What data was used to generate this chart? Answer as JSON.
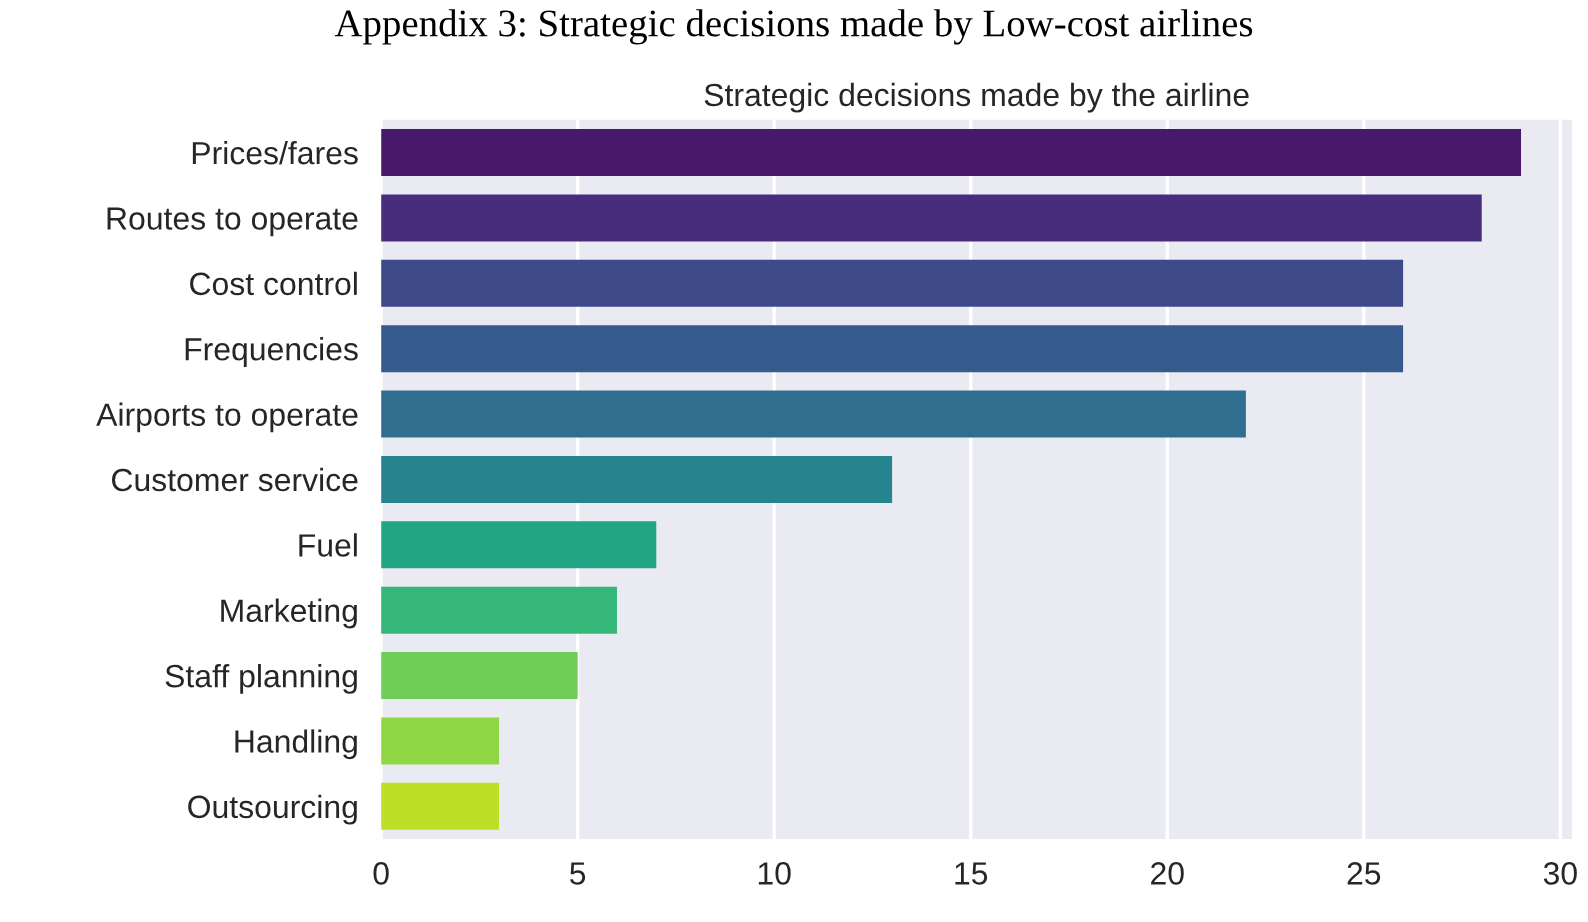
{
  "chart_data": {
    "type": "bar",
    "orientation": "horizontal",
    "title": "Appendix 3: Strategic decisions made by Low-cost airlines",
    "subtitle": "Strategic decisions made by the airline",
    "categories": [
      "Prices/fares",
      "Routes to operate",
      "Cost control",
      "Frequencies",
      "Airports to operate",
      "Customer service",
      "Fuel",
      "Marketing",
      "Staff planning",
      "Handling",
      "Outsourcing"
    ],
    "values": [
      29,
      28,
      26,
      26,
      22,
      13,
      7,
      6,
      5,
      3,
      3
    ],
    "colors": [
      "#48186a",
      "#472d7b",
      "#3e4989",
      "#375a8c",
      "#2f6e8e",
      "#25848e",
      "#21a585",
      "#35b779",
      "#6ece58",
      "#8fd744",
      "#bddf26"
    ],
    "xlim": [
      0,
      30.3
    ],
    "xticks": [
      0,
      5,
      10,
      15,
      20,
      25,
      30
    ],
    "grid": "x"
  }
}
